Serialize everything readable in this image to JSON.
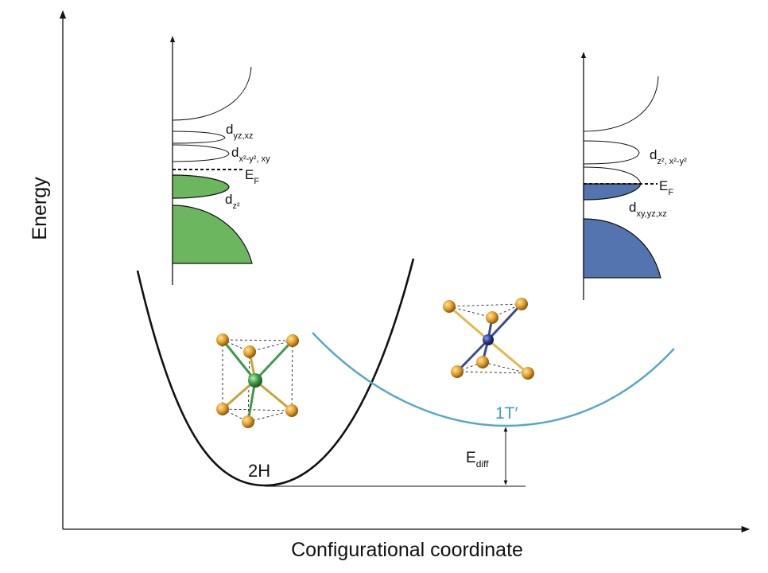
{
  "axes": {
    "y_label": "Energy",
    "x_label": "Configurational coordinate"
  },
  "phases": {
    "h2": {
      "label": "2H",
      "curve_color": "#111111",
      "dos_color": "#6db660",
      "metal_color": "#3e9a4b"
    },
    "t1": {
      "label": "1T′",
      "label_color": "#3a9fc4",
      "curve_color": "#55a7cc",
      "dos_color": "#5374ae",
      "metal_color": "#2c3c8c"
    }
  },
  "dos_2h": {
    "states": [
      {
        "name": "d",
        "sub": "yz,xz"
      },
      {
        "name": "d",
        "sub": "x²-y², xy"
      },
      {
        "name": "E",
        "sub": "F"
      },
      {
        "name": "d",
        "sub": "z²"
      }
    ]
  },
  "dos_1t": {
    "states": [
      {
        "name": "d",
        "sub": "z², x²-y²"
      },
      {
        "name": "E",
        "sub": "F"
      },
      {
        "name": "d",
        "sub": "xy,yz,xz"
      }
    ]
  },
  "energy_gap": {
    "name": "E",
    "sub": "diff"
  },
  "colors": {
    "chalcogen": "#e4a02a",
    "bond": "#c9a23a"
  }
}
